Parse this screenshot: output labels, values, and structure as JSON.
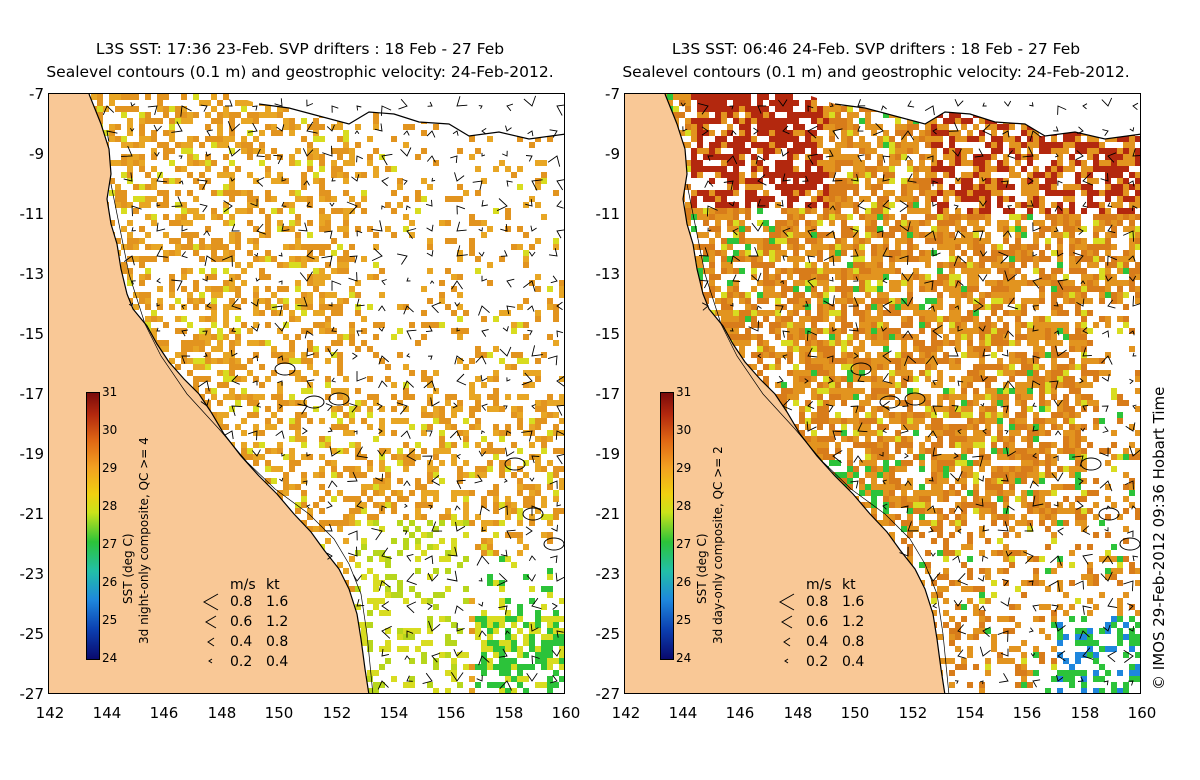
{
  "panels": [
    {
      "title_line1": "L3S SST: 17:36 23-Feb. SVP drifters : 18 Feb - 27 Feb",
      "title_line2": "Sealevel contours (0.1 m) and geostrophic velocity: 24-Feb-2012.",
      "colorbar_title": "SST (deg C)",
      "colorbar_subtitle": "3d night-only composite, QC >= 4",
      "sst_warmth": "cooler"
    },
    {
      "title_line1": "L3S SST: 06:46 24-Feb. SVP drifters : 18 Feb - 27 Feb",
      "title_line2": "Sealevel contours (0.1 m) and geostrophic velocity: 24-Feb-2012.",
      "colorbar_title": "SST (deg C)",
      "colorbar_subtitle": "3d day-only composite, QC >= 2",
      "sst_warmth": "warmer"
    }
  ],
  "axes": {
    "y_ticks": [
      "-7",
      "-9",
      "-11",
      "-13",
      "-15",
      "-17",
      "-19",
      "-21",
      "-23",
      "-25",
      "-27"
    ],
    "x_ticks": [
      "142",
      "144",
      "146",
      "148",
      "150",
      "152",
      "154",
      "156",
      "158",
      "160"
    ],
    "lon_range": [
      142,
      160
    ],
    "lat_range": [
      -27,
      -7
    ]
  },
  "colorbar": {
    "ticks": [
      "31",
      "30",
      "29",
      "28",
      "27",
      "26",
      "25",
      "24"
    ],
    "range": [
      24,
      31
    ]
  },
  "velocity_legend": {
    "header_ms": "m/s",
    "header_kt": "kt",
    "rows": [
      {
        "ms": "0.8",
        "kt": "1.6"
      },
      {
        "ms": "0.6",
        "kt": "1.2"
      },
      {
        "ms": "0.4",
        "kt": "0.8"
      },
      {
        "ms": "0.2",
        "kt": "0.4"
      }
    ]
  },
  "copyright": "© IMOS 29-Feb-2012 09:36 Hobart Time",
  "colors": {
    "land": "#f9c896",
    "coast": "#000000",
    "ocean_nodata": "#ffffff",
    "sst_warm": "#e2941f",
    "sst_hot": "#b3280e",
    "sst_mid": "#d8dc20",
    "sst_cool": "#2cc33a"
  }
}
